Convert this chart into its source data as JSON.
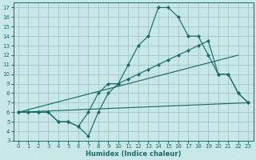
{
  "xlabel": "Humidex (Indice chaleur)",
  "background_color": "#c8e8e8",
  "grid_color": "#a0c8c8",
  "line_color": "#1a6b6b",
  "xlim": [
    -0.5,
    23.5
  ],
  "ylim": [
    3,
    17.5
  ],
  "xticks": [
    0,
    1,
    2,
    3,
    4,
    5,
    6,
    7,
    8,
    9,
    10,
    11,
    12,
    13,
    14,
    15,
    16,
    17,
    18,
    19,
    20,
    21,
    22,
    23
  ],
  "yticks": [
    3,
    4,
    5,
    6,
    7,
    8,
    9,
    10,
    11,
    12,
    13,
    14,
    15,
    16,
    17
  ],
  "line1_x": [
    0,
    1,
    2,
    3,
    4,
    5,
    6,
    7,
    8,
    9,
    10,
    11,
    12,
    13,
    14,
    15,
    16,
    17,
    18,
    19,
    20,
    21,
    22,
    23
  ],
  "line1_y": [
    6,
    6,
    6,
    6,
    5,
    5,
    4.5,
    3.5,
    6,
    8,
    9,
    11,
    13,
    14,
    17,
    17,
    16,
    14,
    14,
    12,
    10,
    10,
    8,
    7
  ],
  "line2_x": [
    0,
    1,
    2,
    3,
    4,
    5,
    6,
    7,
    8,
    9,
    10,
    11,
    12,
    13,
    14,
    15,
    16,
    17,
    18,
    19,
    20,
    21,
    22,
    23
  ],
  "line2_y": [
    6,
    6,
    6,
    6,
    5,
    5,
    4.5,
    6,
    8,
    9,
    9,
    9.5,
    10,
    10.5,
    11,
    11.5,
    12,
    12.5,
    13,
    13.5,
    10,
    10,
    8,
    7
  ],
  "line3_x": [
    0,
    22
  ],
  "line3_y": [
    6,
    12
  ],
  "line4_x": [
    0,
    23
  ],
  "line4_y": [
    6,
    7
  ]
}
